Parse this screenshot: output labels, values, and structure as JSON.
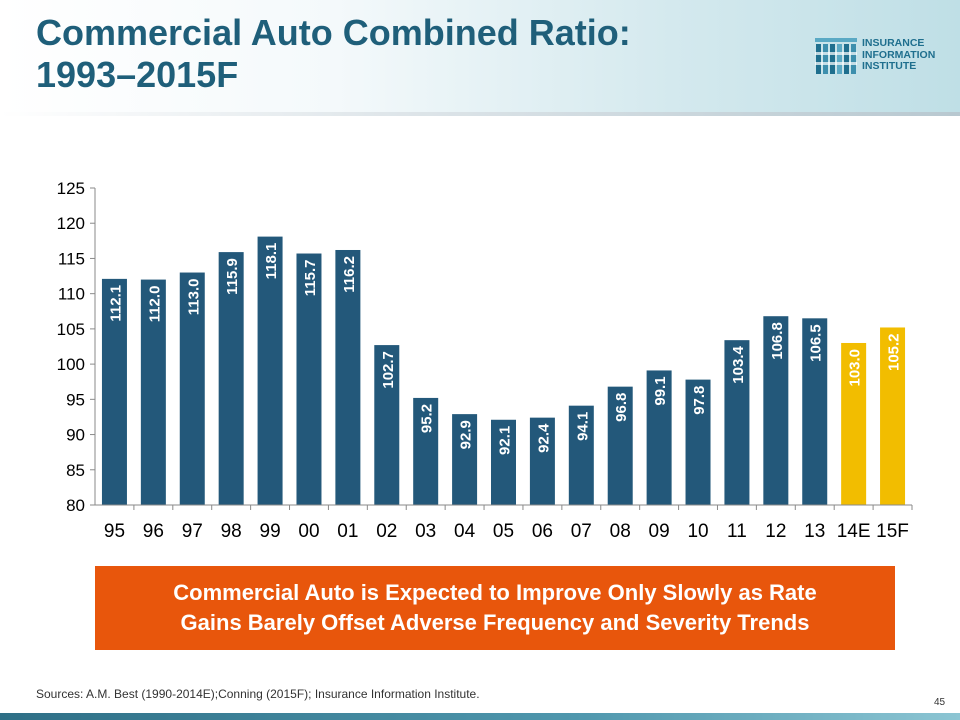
{
  "header": {
    "title_line1": "Commercial Auto Combined Ratio:",
    "title_line2": "1993–2015F"
  },
  "logo": {
    "line1": "INSURANCE",
    "line2": "INFORMATION",
    "line3": "INSTITUTE"
  },
  "chart_data": {
    "type": "bar",
    "categories": [
      "95",
      "96",
      "97",
      "98",
      "99",
      "00",
      "01",
      "02",
      "03",
      "04",
      "05",
      "06",
      "07",
      "08",
      "09",
      "10",
      "11",
      "12",
      "13",
      "14E",
      "15F"
    ],
    "values": [
      112.1,
      112.0,
      113.0,
      115.9,
      118.1,
      115.7,
      116.2,
      102.7,
      95.2,
      92.9,
      92.1,
      92.4,
      94.1,
      96.8,
      99.1,
      97.8,
      103.4,
      106.8,
      106.5,
      103.0,
      105.2
    ],
    "value_labels": [
      "112.1",
      "112.0",
      "113.0",
      "115.9",
      "118.1",
      "115.7",
      "116.2",
      "102.7",
      "95.2",
      "92.9",
      "92.1",
      "92.4",
      "94.1",
      "96.8",
      "99.1",
      "97.8",
      "103.4",
      "106.8",
      "106.5",
      "103.0",
      "105.2"
    ],
    "highlighted": [
      false,
      false,
      false,
      false,
      false,
      false,
      false,
      false,
      false,
      false,
      false,
      false,
      false,
      false,
      false,
      false,
      false,
      false,
      false,
      true,
      true
    ],
    "ylim": [
      80,
      125
    ],
    "yticks": [
      80,
      85,
      90,
      95,
      100,
      105,
      110,
      115,
      120,
      125
    ],
    "colors": {
      "actual": "#23587a",
      "forecast": "#f2bd00"
    },
    "grid": false,
    "legend": "none"
  },
  "callout": {
    "line1": "Commercial Auto is Expected to Improve Only Slowly as Rate",
    "line2": "Gains Barely Offset Adverse Frequency and Severity Trends",
    "color": "#e8560c"
  },
  "footer": {
    "sources": "Sources: A.M. Best (1990-2014E);Conning (2015F); Insurance Information Institute.",
    "page_number": "45"
  }
}
